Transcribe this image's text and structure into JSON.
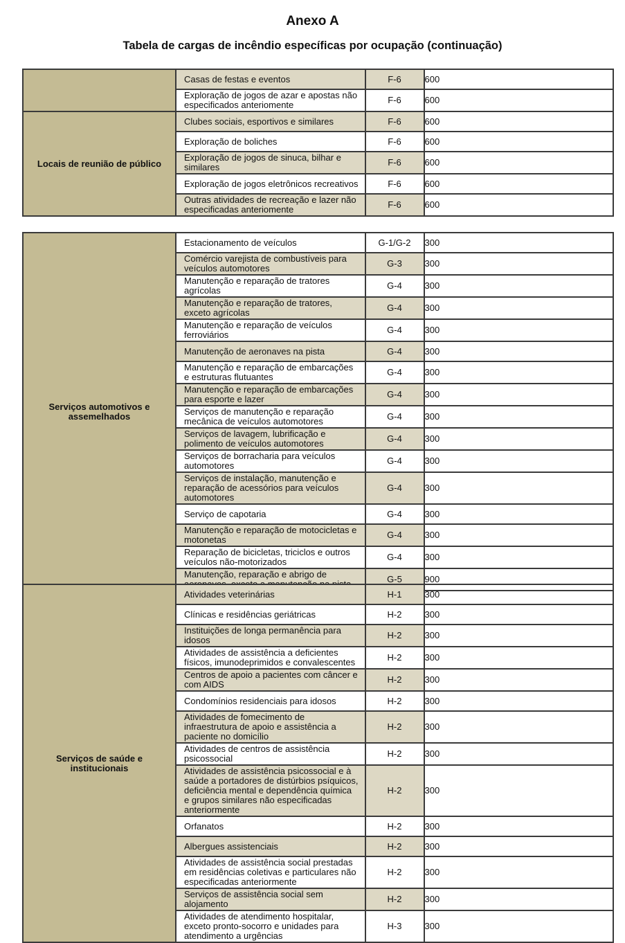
{
  "header": {
    "title": "Anexo A",
    "subtitle": "Tabela de cargas de incêndio específicas por ocupação (continuação)"
  },
  "colors": {
    "category_bg": "#c4bb94",
    "shaded_row": "#ddd8c4",
    "border": "#3a3a3a"
  },
  "sections": [
    {
      "groups": [
        {
          "category": "",
          "rows": [
            {
              "desc": "Casas de festas e eventos",
              "code": "F-6",
              "value": "600",
              "shaded": true
            },
            {
              "desc": "Exploração de jogos de azar e apostas não especificados anteriomente",
              "code": "F-6",
              "value": "600",
              "shaded": false
            }
          ]
        },
        {
          "category": "Locais de reunião de público",
          "rows": [
            {
              "desc": "Clubes sociais, esportivos e similares",
              "code": "F-6",
              "value": "600",
              "shaded": true
            },
            {
              "desc": "Exploração de boliches",
              "code": "F-6",
              "value": "600",
              "shaded": false
            },
            {
              "desc": "Exploração de jogos de sinuca, bilhar e similares",
              "code": "F-6",
              "value": "600",
              "shaded": true
            },
            {
              "desc": "Exploração de jogos eletrônicos recreativos",
              "code": "F-6",
              "value": "600",
              "shaded": false
            },
            {
              "desc": "Outras atividades de recreação e lazer não especificadas anteriomente",
              "code": "F-6",
              "value": "600",
              "shaded": true
            }
          ]
        }
      ]
    },
    {
      "groups": [
        {
          "category": "Serviços automotivos e assemelhados",
          "rows": [
            {
              "desc": "Estacionamento de veículos",
              "code": "G-1/G-2",
              "value": "300",
              "shaded": false
            },
            {
              "desc": "Comércio varejista de combustíveis para veículos automotores",
              "code": "G-3",
              "value": "300",
              "shaded": true
            },
            {
              "desc": "Manutenção e reparação de tratores agrícolas",
              "code": "G-4",
              "value": "300",
              "shaded": false
            },
            {
              "desc": "Manutenção e reparação de tratores, exceto agrícolas",
              "code": "G-4",
              "value": "300",
              "shaded": true
            },
            {
              "desc": "Manutenção e reparação de veículos ferroviários",
              "code": "G-4",
              "value": "300",
              "shaded": false
            },
            {
              "desc": "Manutenção de aeronaves na pista",
              "code": "G-4",
              "value": "300",
              "shaded": true
            },
            {
              "desc": "Manutenção e reparação de embarcações e estruturas flutuantes",
              "code": "G-4",
              "value": "300",
              "shaded": false
            },
            {
              "desc": "Manutenção e reparação de embarcações para esporte e lazer",
              "code": "G-4",
              "value": "300",
              "shaded": true
            },
            {
              "desc": "Serviços de manutenção e reparação mecânica de veículos automotores",
              "code": "G-4",
              "value": "300",
              "shaded": false
            },
            {
              "desc": "Serviços de lavagem, lubrificação e polimento de veículos automotores",
              "code": "G-4",
              "value": "300",
              "shaded": true
            },
            {
              "desc": "Serviços de borracharia para veículos automotores",
              "code": "G-4",
              "value": "300",
              "shaded": false
            },
            {
              "desc": "Serviços de instalação, manutenção e reparação de acessórios para veículos automotores",
              "code": "G-4",
              "value": "300",
              "shaded": true
            },
            {
              "desc": "Serviço de capotaria",
              "code": "G-4",
              "value": "300",
              "shaded": false
            },
            {
              "desc": "Manutenção e reparação de motocicletas e motonetas",
              "code": "G-4",
              "value": "300",
              "shaded": true
            },
            {
              "desc": "Reparação de bicicletas, triciclos e outros veículos não-motorizados",
              "code": "G-4",
              "value": "300",
              "shaded": false
            },
            {
              "desc": "Manutenção, reparação e abrigo de aeronaves, exceto a manutenção na pista",
              "code": "G-5",
              "value": "900",
              "shaded": true
            }
          ]
        }
      ]
    },
    {
      "groups": [
        {
          "category": "Serviços de saúde e institucionais",
          "rows": [
            {
              "desc": "Atividades veterinárias",
              "code": "H-1",
              "value": "300",
              "shaded": true
            },
            {
              "desc": "Clínicas e residências geriátricas",
              "code": "H-2",
              "value": "300",
              "shaded": false
            },
            {
              "desc": "Instituições de longa permanência para idosos",
              "code": "H-2",
              "value": "300",
              "shaded": true
            },
            {
              "desc": "Atividades de assistência a deficientes físicos, imunodeprimidos e convalescentes",
              "code": "H-2",
              "value": "300",
              "shaded": false
            },
            {
              "desc": "Centros de apoio a pacientes com câncer e com AIDS",
              "code": "H-2",
              "value": "300",
              "shaded": true
            },
            {
              "desc": "Condomínios residenciais para idosos",
              "code": "H-2",
              "value": "300",
              "shaded": false
            },
            {
              "desc": "Atividades de fomecimento de infraestrutura de apoio e assistência a paciente no domicílio",
              "code": "H-2",
              "value": "300",
              "shaded": true
            },
            {
              "desc": "Atividades de centros de assistência psicossocial",
              "code": "H-2",
              "value": "300",
              "shaded": false
            },
            {
              "desc": "Atividades de assistência psicossocial e à saúde a portadores de distúrbios psíquicos, deficiência mental e dependência química e grupos similares não especificadas anteriormente",
              "code": "H-2",
              "value": "300",
              "shaded": true
            },
            {
              "desc": "Orfanatos",
              "code": "H-2",
              "value": "300",
              "shaded": false
            },
            {
              "desc": "Albergues assistenciais",
              "code": "H-2",
              "value": "300",
              "shaded": true
            },
            {
              "desc": "Atividades de assistência social prestadas em residências coletivas e particulares não especificadas anteriormente",
              "code": "H-2",
              "value": "300",
              "shaded": false
            },
            {
              "desc": "Serviços de assistência social sem alojamento",
              "code": "H-2",
              "value": "300",
              "shaded": true
            },
            {
              "desc": "Atividades de atendimento hospitalar, exceto pronto-socorro e unidades para atendimento a urgências",
              "code": "H-3",
              "value": "300",
              "shaded": false
            }
          ]
        }
      ]
    }
  ]
}
